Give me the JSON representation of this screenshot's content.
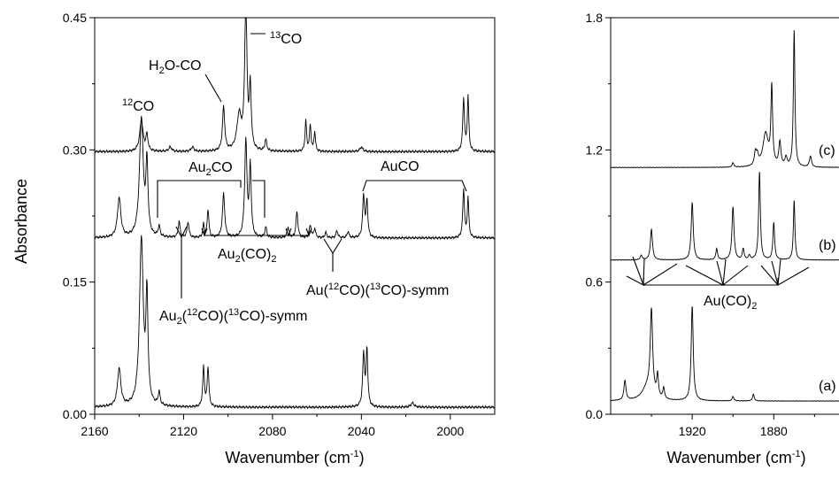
{
  "chart_data": [
    {
      "type": "line",
      "xlabel": "Wavenumber (cm",
      "xlabel_sup": "-1",
      "xlabel_close": ")",
      "ylabel": "Absorbance",
      "xlim": [
        2160,
        1980
      ],
      "ylim": [
        0.0,
        0.45
      ],
      "x_ticks": [
        2160,
        2120,
        2080,
        2040,
        2000
      ],
      "y_ticks": [
        0.0,
        0.15,
        0.3,
        0.45
      ],
      "x_tick_labels": [
        "2160",
        "2120",
        "2080",
        "2040",
        "2000"
      ],
      "y_tick_labels": [
        "0.00",
        "0.15",
        "0.30",
        "0.45"
      ],
      "series": [
        {
          "baseline": 0.008,
          "peaks": [
            [
              2149,
              0.043,
              0.9
            ],
            [
              2139,
              0.19,
              1.0
            ],
            [
              2136.5,
              0.12,
              0.55
            ],
            [
              2131,
              0.015,
              0.5
            ],
            [
              2111,
              0.045,
              0.45
            ],
            [
              2109,
              0.045,
              0.45
            ],
            [
              2039,
              0.06,
              0.5
            ],
            [
              2037.5,
              0.065,
              0.45
            ],
            [
              2017,
              0.005,
              0.8
            ]
          ]
        },
        {
          "baseline": 0.2,
          "peaks": [
            [
              2149,
              0.045,
              0.9
            ],
            [
              2139,
              0.135,
              1.0
            ],
            [
              2136.5,
              0.08,
              0.55
            ],
            [
              2131,
              0.012,
              0.5
            ],
            [
              2122,
              0.018,
              0.5
            ],
            [
              2118,
              0.018,
              0.5
            ],
            [
              2111,
              0.015,
              0.4
            ],
            [
              2109,
              0.032,
              0.45
            ],
            [
              2102,
              0.05,
              0.6
            ],
            [
              2092,
              0.11,
              0.6
            ],
            [
              2090,
              0.08,
              0.5
            ],
            [
              2083,
              0.012,
              0.5
            ],
            [
              2073,
              0.012,
              0.5
            ],
            [
              2069,
              0.03,
              0.5
            ],
            [
              2063,
              0.014,
              0.5
            ],
            [
              2061,
              0.01,
              0.5
            ],
            [
              2056,
              0.006,
              0.5
            ],
            [
              2051,
              0.008,
              0.5
            ],
            [
              2046,
              0.007,
              0.5
            ],
            [
              2039,
              0.048,
              0.5
            ],
            [
              2037.5,
              0.042,
              0.45
            ],
            [
              1994,
              0.055,
              0.45
            ],
            [
              1992,
              0.045,
              0.4
            ]
          ]
        },
        {
          "baseline": 0.298,
          "peaks": [
            [
              2139,
              0.035,
              0.9
            ],
            [
              2136.5,
              0.018,
              0.55
            ],
            [
              2126,
              0.005,
              0.8
            ],
            [
              2116,
              0.005,
              0.8
            ],
            [
              2102,
              0.05,
              0.6
            ],
            [
              2095,
              0.04,
              1.2
            ],
            [
              2092,
              0.17,
              0.6
            ],
            [
              2090,
              0.07,
              0.5
            ],
            [
              2083,
              0.013,
              0.5
            ],
            [
              2065,
              0.035,
              0.4
            ],
            [
              2063,
              0.03,
              0.4
            ],
            [
              2061,
              0.022,
              0.4
            ],
            [
              2040,
              0.005,
              0.8
            ],
            [
              1994,
              0.06,
              0.45
            ],
            [
              1992,
              0.062,
              0.4
            ]
          ]
        }
      ],
      "annotations": {
        "co12": {
          "main": "CO",
          "sup": "12"
        },
        "h2o_co": {
          "main1": "H",
          "sub": "2",
          "main2": "O-CO"
        },
        "co13": {
          "main": "CO",
          "sup": "13"
        },
        "au2co": {
          "main1": "Au",
          "sub": "2",
          "main2": "CO"
        },
        "auco": "AuCO",
        "au2co2": {
          "main1": "Au",
          "sub": "2",
          "main2": "(CO)",
          "sub2": "2"
        },
        "au_sym": {
          "p1": "Au(",
          "s1": "12",
          "p2": "CO)(",
          "s2": "13",
          "p3": "CO)-symm"
        },
        "au2_sym": {
          "p1": "Au",
          "b1": "2",
          "p2": "(",
          "s1": "12",
          "p3": "CO)(",
          "s2": "13",
          "p4": "CO)-symm"
        }
      }
    },
    {
      "type": "line",
      "xlabel": "Wavenumber (cm",
      "xlabel_sup": "-1",
      "xlabel_close": ")",
      "xlim": [
        1960,
        1848
      ],
      "ylim": [
        0.0,
        1.8
      ],
      "x_ticks": [
        1920,
        1880
      ],
      "y_ticks": [
        0.0,
        0.6,
        1.2,
        1.8
      ],
      "x_tick_labels": [
        "1920",
        "1880"
      ],
      "y_tick_labels": [
        "0.0",
        "0.6",
        "1.2",
        "1.8"
      ],
      "series": [
        {
          "label": "(a)",
          "baseline": 0.06,
          "peaks": [
            [
              1953,
              0.09,
              0.6
            ],
            [
              1942,
              0.06,
              3.0
            ],
            [
              1940,
              0.38,
              0.7
            ],
            [
              1937,
              0.1,
              0.5
            ],
            [
              1934,
              0.05,
              0.5
            ],
            [
              1920,
              0.43,
              0.6
            ],
            [
              1900,
              0.02,
              0.5
            ],
            [
              1890,
              0.03,
              0.5
            ]
          ]
        },
        {
          "label": "(b)",
          "baseline": 0.7,
          "peaks": [
            [
              1945,
              0.02,
              0.6
            ],
            [
              1940,
              0.14,
              0.6
            ],
            [
              1920,
              0.26,
              0.6
            ],
            [
              1908,
              0.05,
              0.5
            ],
            [
              1900,
              0.24,
              0.6
            ],
            [
              1895,
              0.05,
              0.5
            ],
            [
              1892,
              0.02,
              0.5
            ],
            [
              1887,
              0.4,
              0.5
            ],
            [
              1880,
              0.17,
              0.5
            ],
            [
              1870,
              0.27,
              0.45
            ]
          ]
        },
        {
          "label": "(c)",
          "baseline": 1.12,
          "peaks": [
            [
              1900,
              0.02,
              0.5
            ],
            [
              1889,
              0.06,
              0.6
            ],
            [
              1888,
              0.04,
              0.6
            ],
            [
              1884,
              0.15,
              1.6
            ],
            [
              1881,
              0.35,
              0.5
            ],
            [
              1877,
              0.11,
              0.6
            ],
            [
              1874,
              0.04,
              0.6
            ],
            [
              1870,
              0.62,
              0.45
            ],
            [
              1862,
              0.05,
              0.6
            ]
          ]
        }
      ],
      "annotations": {
        "au_co2": {
          "main1": "Au(CO)",
          "sub": "2"
        }
      }
    }
  ]
}
